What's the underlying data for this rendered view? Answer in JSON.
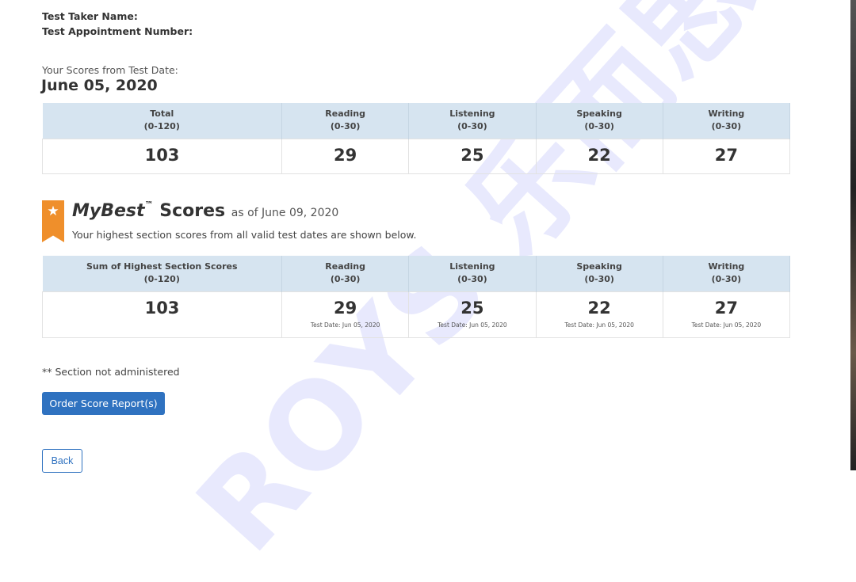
{
  "header": {
    "name_label": "Test Taker Name:",
    "appointment_label": "Test Appointment Number:"
  },
  "scores": {
    "subtitle": "Your Scores from Test Date:",
    "date": "June 05, 2020",
    "columns": [
      {
        "label": "Total",
        "range": "(0-120)",
        "score": "103"
      },
      {
        "label": "Reading",
        "range": "(0-30)",
        "score": "29"
      },
      {
        "label": "Listening",
        "range": "(0-30)",
        "score": "25"
      },
      {
        "label": "Speaking",
        "range": "(0-30)",
        "score": "22"
      },
      {
        "label": "Writing",
        "range": "(0-30)",
        "score": "27"
      }
    ]
  },
  "mybest": {
    "title": "MyBest",
    "tm": "™",
    "title2": "Scores",
    "as_of": "as of June 09, 2020",
    "description": "Your highest section scores from all valid test dates are shown below.",
    "icon": "star-ribbon-icon",
    "accent": "#ef8f2b",
    "columns": [
      {
        "label": "Sum of Highest Section Scores",
        "range": "(0-120)",
        "score": "103",
        "date": ""
      },
      {
        "label": "Reading",
        "range": "(0-30)",
        "score": "29",
        "date": "Test Date: Jun 05, 2020"
      },
      {
        "label": "Listening",
        "range": "(0-30)",
        "score": "25",
        "date": "Test Date: Jun 05, 2020"
      },
      {
        "label": "Speaking",
        "range": "(0-30)",
        "score": "22",
        "date": "Test Date: Jun 05, 2020"
      },
      {
        "label": "Writing",
        "range": "(0-30)",
        "score": "27",
        "date": "Test Date: Jun 05, 2020"
      }
    ]
  },
  "note": "** Section not administered",
  "buttons": {
    "order": "Order Score Report(s)",
    "back": "Back",
    "order_color": "#2f72c0"
  },
  "watermark": "ROYS 乐而思"
}
